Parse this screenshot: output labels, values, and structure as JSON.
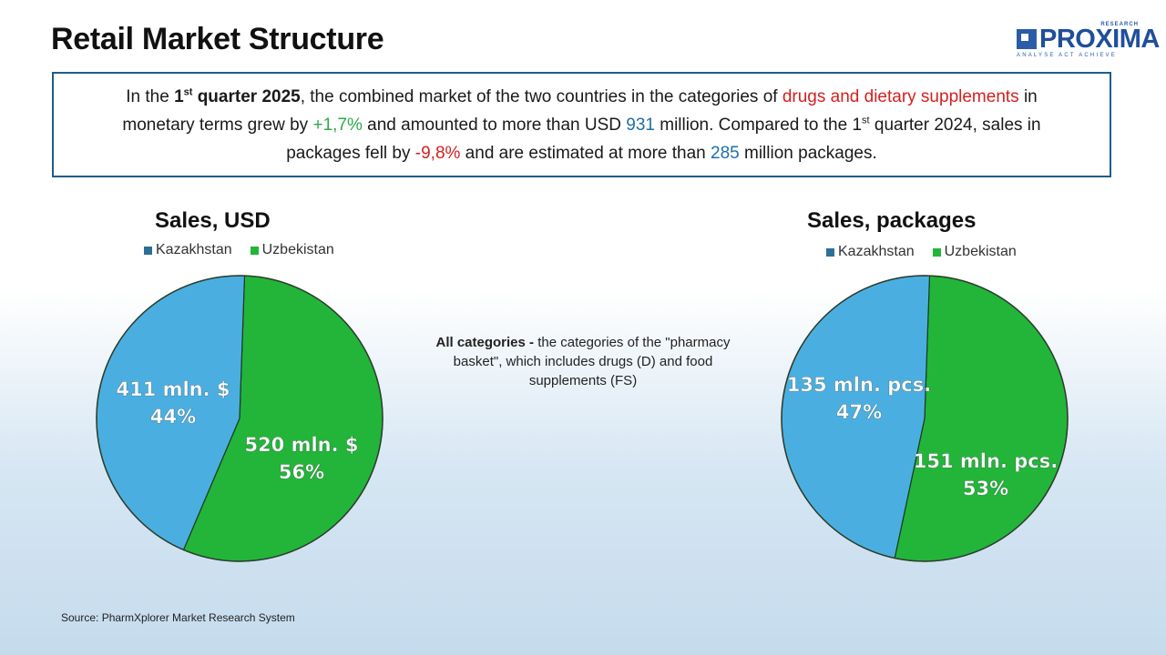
{
  "title": "Retail Market Structure",
  "logo": {
    "word": "PROXIMA",
    "research": "RESEARCH",
    "tagline": "ANALYSE  ACT  ACHIEVE"
  },
  "summary": {
    "p1": "In the ",
    "p2": "1",
    "p3": "st",
    "p4": " quarter 2025",
    "p5": ", the combined market of the two countries in the categories of ",
    "p6": "drugs and dietary supplements",
    "p7": " in monetary terms grew by ",
    "p8": "+1,7%",
    "p9": " and amounted to more than USD ",
    "p10": "931",
    "p11": " million. Compared to the 1",
    "p12": "st",
    "p13": " quarter 2024, sales in packages fell by  ",
    "p14": "-9,8%",
    "p15": " and are estimated at more than ",
    "p16": "285",
    "p17": " million packages."
  },
  "note": {
    "bold": "All categories - ",
    "text": "the categories of the \"pharmacy basket\", which includes drugs (D) and food supplements (FS)"
  },
  "source": "Source: PharmXplorer Market Research System",
  "colors": {
    "kazakhstan": "#4aafe0",
    "uzbekistan": "#22b53a",
    "accent_red": "#d62020",
    "accent_green": "#2ea84c",
    "accent_blue": "#1f6fa8",
    "border": "#1f5c8b"
  },
  "chart_data": [
    {
      "type": "pie",
      "title": "Sales, USD",
      "legend": [
        "Kazakhstan",
        "Uzbekistan"
      ],
      "legend_position": "top",
      "slices": [
        {
          "name": "Kazakhstan",
          "value": 411,
          "percent": 44,
          "label1": "411 mln. $",
          "label2": "44%"
        },
        {
          "name": "Uzbekistan",
          "value": 520,
          "percent": 56,
          "label1": "520 mln. $",
          "label2": "56%"
        }
      ]
    },
    {
      "type": "pie",
      "title": "Sales, packages",
      "legend": [
        "Kazakhstan",
        "Uzbekistan"
      ],
      "legend_position": "top",
      "slices": [
        {
          "name": "Kazakhstan",
          "value": 135,
          "percent": 47,
          "label1": "135 mln. pcs.",
          "label2": "47%"
        },
        {
          "name": "Uzbekistan",
          "value": 151,
          "percent": 53,
          "label1": "151 mln. pcs.",
          "label2": "53%"
        }
      ]
    }
  ]
}
